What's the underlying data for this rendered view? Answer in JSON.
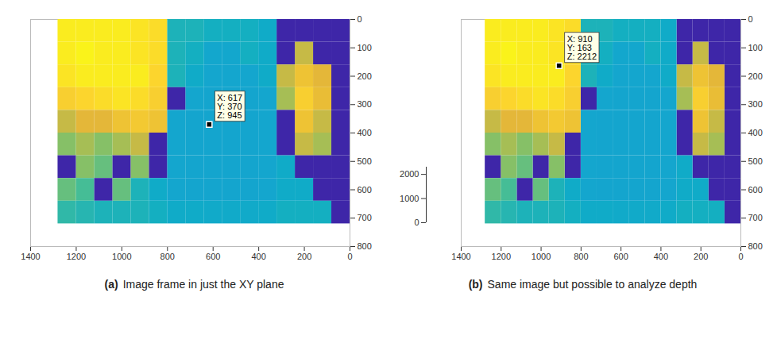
{
  "chart_data": [
    {
      "type": "heatmap",
      "panel": "(a)",
      "caption": "Image frame in just the XY plane",
      "xlim": [
        1400,
        0
      ],
      "xticks": [
        0,
        200,
        400,
        600,
        800,
        1000,
        1200,
        1400
      ],
      "ylim": [
        0,
        800
      ],
      "yticks": [
        0,
        100,
        200,
        300,
        400,
        500,
        600,
        700,
        800
      ],
      "clim": [
        0,
        2300
      ],
      "cells": {
        "x_edges": [
          0,
          80,
          160,
          240,
          320,
          400,
          480,
          560,
          640,
          720,
          800,
          880,
          960,
          1040,
          1120,
          1200,
          1280
        ],
        "y_edges": [
          0,
          80,
          160,
          240,
          320,
          400,
          480,
          560,
          640,
          720
        ],
        "z": [
          [
            0,
            0,
            0,
            0,
            1000,
            1050,
            1050,
            1050,
            1100,
            1100,
            2100,
            2150,
            2200,
            2200,
            2200,
            2200
          ],
          [
            0,
            0,
            1700,
            0,
            1000,
            1050,
            960,
            960,
            1050,
            1100,
            2100,
            2150,
            2200,
            2200,
            2250,
            2200
          ],
          [
            0,
            1800,
            1900,
            1700,
            1000,
            950,
            950,
            950,
            1000,
            1100,
            2050,
            2200,
            2200,
            2200,
            2200,
            2150
          ],
          [
            0,
            1850,
            2000,
            1600,
            950,
            945,
            945,
            945,
            950,
            0,
            2000,
            2100,
            2150,
            2100,
            2050,
            2000
          ],
          [
            0,
            1700,
            1900,
            0,
            950,
            945,
            945,
            945,
            945,
            950,
            1900,
            1950,
            1900,
            1800,
            1800,
            1700
          ],
          [
            0,
            1600,
            1700,
            0,
            950,
            945,
            945,
            945,
            945,
            950,
            0,
            1700,
            1600,
            1500,
            1600,
            1500
          ],
          [
            0,
            0,
            0,
            1000,
            950,
            945,
            945,
            945,
            945,
            950,
            0,
            1500,
            0,
            1400,
            1500,
            0
          ],
          [
            0,
            0,
            1000,
            1000,
            950,
            945,
            945,
            945,
            945,
            950,
            1000,
            1100,
            1400,
            0,
            1300,
            1400
          ],
          [
            0,
            1050,
            1050,
            1050,
            1000,
            990,
            990,
            990,
            1000,
            1000,
            1050,
            1100,
            1100,
            1100,
            1150,
            1200
          ]
        ]
      },
      "annotation": {
        "x": 617,
        "y": 370,
        "text": [
          "X: 617",
          "Y: 370",
          "Z: 945"
        ],
        "marker": "square"
      }
    },
    {
      "type": "heatmap",
      "panel": "(b)",
      "caption": "Same image but possible to analyze depth",
      "xlim": [
        1400,
        0
      ],
      "xticks": [
        0,
        200,
        400,
        600,
        800,
        1000,
        1200,
        1400
      ],
      "ylim": [
        0,
        800
      ],
      "yticks": [
        0,
        100,
        200,
        300,
        400,
        500,
        600,
        700,
        800
      ],
      "zlim": [
        0,
        2300
      ],
      "zticks": [
        0,
        1000,
        2000
      ],
      "clim": [
        0,
        2300
      ],
      "cells": {
        "x_edges": [
          0,
          80,
          160,
          240,
          320,
          400,
          480,
          560,
          640,
          720,
          800,
          880,
          960,
          1040,
          1120,
          1200,
          1280
        ],
        "y_edges": [
          0,
          80,
          160,
          240,
          320,
          400,
          480,
          560,
          640,
          720
        ],
        "z": [
          [
            0,
            0,
            0,
            0,
            1000,
            1050,
            1050,
            1050,
            1100,
            1100,
            2100,
            2150,
            2200,
            2200,
            2200,
            2200
          ],
          [
            0,
            0,
            1700,
            0,
            1000,
            1050,
            960,
            960,
            1050,
            1100,
            2100,
            2150,
            2200,
            2200,
            2250,
            2200
          ],
          [
            0,
            1800,
            1900,
            1700,
            1000,
            950,
            950,
            950,
            1000,
            1100,
            2050,
            2200,
            2200,
            2200,
            2200,
            2150
          ],
          [
            0,
            1850,
            2000,
            1600,
            950,
            945,
            945,
            945,
            950,
            0,
            2000,
            2100,
            2150,
            2100,
            2050,
            2000
          ],
          [
            0,
            1700,
            1900,
            0,
            950,
            945,
            945,
            945,
            945,
            950,
            1900,
            1950,
            1900,
            1800,
            1800,
            1700
          ],
          [
            0,
            1600,
            1700,
            0,
            950,
            945,
            945,
            945,
            945,
            950,
            0,
            1700,
            1600,
            1500,
            1600,
            1500
          ],
          [
            0,
            0,
            0,
            1000,
            950,
            945,
            945,
            945,
            945,
            950,
            0,
            1500,
            0,
            1400,
            1500,
            0
          ],
          [
            0,
            0,
            1000,
            1000,
            950,
            945,
            945,
            945,
            945,
            950,
            1000,
            1100,
            1400,
            0,
            1300,
            1400
          ],
          [
            0,
            1050,
            1050,
            1050,
            1000,
            990,
            990,
            990,
            1000,
            1000,
            1050,
            1100,
            1100,
            1100,
            1150,
            1200
          ]
        ]
      },
      "annotation": {
        "x": 910,
        "y": 163,
        "text": [
          "X: 910",
          "Y: 163",
          "Z: 2212"
        ],
        "marker": "square"
      }
    }
  ]
}
